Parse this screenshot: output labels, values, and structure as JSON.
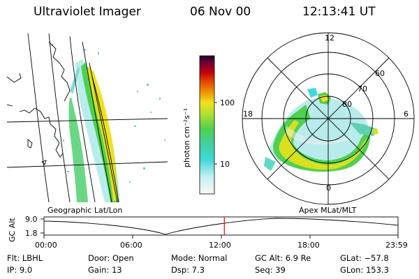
{
  "header": {
    "instrument": "Ultraviolet Imager",
    "date": "06 Nov 00",
    "time": "12:13:41 UT"
  },
  "colorbar": {
    "unit_label": "photon cm⁻²s⁻¹",
    "ticks": [
      "100",
      "10"
    ]
  },
  "polar_plot": {
    "mlt_labels": [
      "12",
      "18",
      "6",
      "0"
    ],
    "mlat_labels": [
      "60",
      "70",
      "80"
    ]
  },
  "map_labels": {
    "left": "Geographic Lat/Lon",
    "right": "Apex MLat/MLT"
  },
  "timeline": {
    "y_label": "GC Alt",
    "y_ticks": [
      "9.0",
      "1.8"
    ],
    "x_ticks": [
      "00:00",
      "06:00",
      "12:00",
      "18:00",
      "23:59"
    ],
    "marker_time": "12:13",
    "marker_color": "#e00000"
  },
  "status": {
    "filter": "Flt: LBHL",
    "ip": "IP:  9.0",
    "door": "Door: Open",
    "gain": "Gain: 13",
    "mode": "Mode: Normal",
    "dsp": "Dsp:     7.3",
    "gc_alt": "GC Alt: 6.9 Re",
    "seq": "Seq: 39",
    "glat": "GLat: −57.8",
    "glon": "GLon: 153.3"
  },
  "colors": {
    "low": "#f0f0f0",
    "cyan": "#40d8d8",
    "green": "#50d050",
    "yellow": "#f0e020",
    "orange": "#f09000",
    "red": "#d00000",
    "dark": "#200030"
  }
}
